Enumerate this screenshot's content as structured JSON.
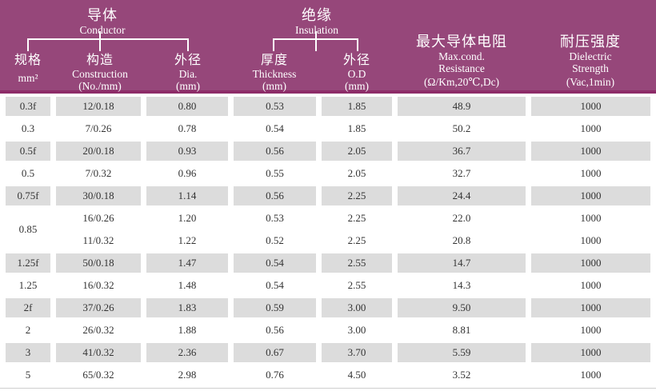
{
  "colors": {
    "header_bg": "#96477a",
    "header_line": "#8d2c68",
    "cell_gray": "#dcdcdc",
    "header_text": "#ffffff",
    "body_text": "#333333",
    "bottom_line": "#cfcfcf"
  },
  "header": {
    "conductor": {
      "zh": "导体",
      "en": "Conductor"
    },
    "insulation": {
      "zh": "绝缘",
      "en": "Insulation"
    },
    "col_spec": {
      "zh": "规格",
      "unit": "mm²"
    },
    "col_construction": {
      "zh": "构造",
      "en": "Construction",
      "unit": "(No./mm)"
    },
    "col_dia": {
      "zh": "外径",
      "en": "Dia.",
      "unit": "(mm)"
    },
    "col_thickness": {
      "zh": "厚度",
      "en": "Thickness",
      "unit": "(mm)"
    },
    "col_od": {
      "zh": "外径",
      "en": "O.D",
      "unit": "(mm)"
    },
    "col_resistance": {
      "zh": "最大导体电阻",
      "en": "Max.cond.",
      "en2": "Resistance",
      "unit": "(Ω/Km,20℃,Dc)"
    },
    "col_dielectric": {
      "zh": "耐压强度",
      "en": "Dielectric",
      "en2": "Strength",
      "unit": "(Vac,1min)"
    }
  },
  "chart_data": {
    "type": "table",
    "title": "Conductor / Insulation wire specification table",
    "column_groups": [
      {
        "label_zh": "导体",
        "label_en": "Conductor",
        "columns": [
          0,
          1,
          2
        ]
      },
      {
        "label_zh": "绝缘",
        "label_en": "Insulation",
        "columns": [
          3,
          4
        ]
      }
    ],
    "columns": [
      "规格 mm²",
      "构造 Construction (No./mm)",
      "外径 Dia. (mm)",
      "厚度 Thickness (mm)",
      "外径 O.D (mm)",
      "最大导体电阻 Max.cond. Resistance (Ω/Km,20℃,Dc)",
      "耐压强度 Dielectric Strength (Vac,1min)"
    ],
    "rows": [
      [
        "0.3f",
        "12/0.18",
        "0.80",
        "0.53",
        "1.85",
        "48.9",
        "1000"
      ],
      [
        "0.3",
        "7/0.26",
        "0.78",
        "0.54",
        "1.85",
        "50.2",
        "1000"
      ],
      [
        "0.5f",
        "20/0.18",
        "0.93",
        "0.56",
        "2.05",
        "36.7",
        "1000"
      ],
      [
        "0.5",
        "7/0.32",
        "0.96",
        "0.55",
        "2.05",
        "32.7",
        "1000"
      ],
      [
        "0.75f",
        "30/0.18",
        "1.14",
        "0.56",
        "2.25",
        "24.4",
        "1000"
      ],
      [
        "0.85",
        "16/0.26",
        "1.20",
        "0.53",
        "2.25",
        "22.0",
        "1000"
      ],
      [
        "",
        "11/0.32",
        "1.22",
        "0.52",
        "2.25",
        "20.8",
        "1000"
      ],
      [
        "1.25f",
        "50/0.18",
        "1.47",
        "0.54",
        "2.55",
        "14.7",
        "1000"
      ],
      [
        "1.25",
        "16/0.32",
        "1.48",
        "0.54",
        "2.55",
        "14.3",
        "1000"
      ],
      [
        "2f",
        "37/0.26",
        "1.83",
        "0.59",
        "3.00",
        "9.50",
        "1000"
      ],
      [
        "2",
        "26/0.32",
        "1.88",
        "0.56",
        "3.00",
        "8.81",
        "1000"
      ],
      [
        "3",
        "41/0.32",
        "2.36",
        "0.67",
        "3.70",
        "5.59",
        "1000"
      ],
      [
        "5",
        "65/0.32",
        "2.98",
        "0.76",
        "4.50",
        "3.52",
        "1000"
      ]
    ],
    "row_shades": [
      "gray",
      "white",
      "gray",
      "white",
      "gray",
      "white",
      "white",
      "gray",
      "white",
      "gray",
      "white",
      "gray",
      "white"
    ],
    "merges": [
      {
        "row": 5,
        "col": 0,
        "rowspan": 2
      }
    ],
    "cell_names": [
      "spec-cell",
      "construction-cell",
      "dia-cell",
      "thickness-cell",
      "od-cell",
      "resistance-cell",
      "dielectric-cell"
    ]
  }
}
